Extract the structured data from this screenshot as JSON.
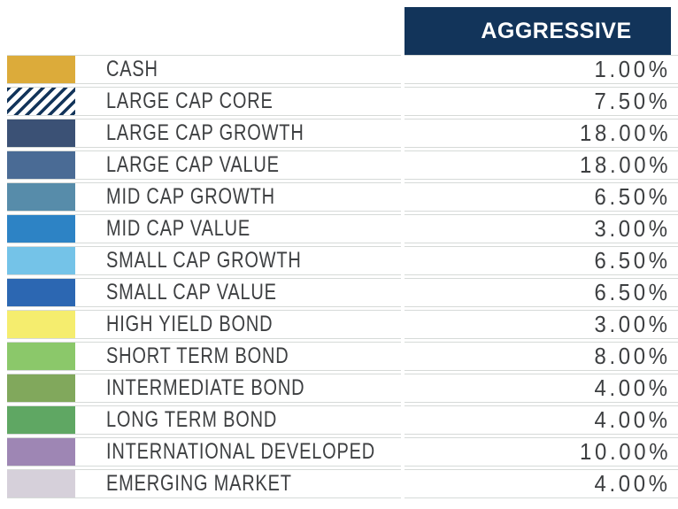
{
  "colors": {
    "header_bg": "#12345a",
    "header_text": "#ffffff",
    "row_bg": "#ffffff",
    "row_border": "#d6dad8",
    "label_text": "#3d3f41",
    "stripe_fg": "#12345a",
    "stripe_bg": "#ffffff"
  },
  "table": {
    "column_header": "AGGRESSIVE",
    "rows": [
      {
        "label": "CASH",
        "value": "1.00%",
        "swatch": "#dcab3a",
        "pattern": "solid"
      },
      {
        "label": "LARGE CAP CORE",
        "value": "7.50%",
        "swatch": "#12345a",
        "pattern": "diagonal-stripes"
      },
      {
        "label": "LARGE CAP GROWTH",
        "value": "18.00%",
        "swatch": "#3b5175",
        "pattern": "solid"
      },
      {
        "label": "LARGE CAP VALUE",
        "value": "18.00%",
        "swatch": "#4a6b95",
        "pattern": "solid"
      },
      {
        "label": "MID CAP GROWTH",
        "value": "6.50%",
        "swatch": "#578caa",
        "pattern": "solid"
      },
      {
        "label": "MID CAP VALUE",
        "value": "3.00%",
        "swatch": "#2d83c5",
        "pattern": "solid"
      },
      {
        "label": "SMALL CAP GROWTH",
        "value": "6.50%",
        "swatch": "#74c3e8",
        "pattern": "solid"
      },
      {
        "label": "SMALL CAP VALUE",
        "value": "6.50%",
        "swatch": "#2c67b2",
        "pattern": "solid"
      },
      {
        "label": "HIGH YIELD BOND",
        "value": "3.00%",
        "swatch": "#f5ed6e",
        "pattern": "solid"
      },
      {
        "label": "SHORT TERM BOND",
        "value": "8.00%",
        "swatch": "#8bc86a",
        "pattern": "solid"
      },
      {
        "label": "INTERMEDIATE BOND",
        "value": "4.00%",
        "swatch": "#81a85c",
        "pattern": "solid"
      },
      {
        "label": "LONG TERM BOND",
        "value": "4.00%",
        "swatch": "#5fa763",
        "pattern": "solid"
      },
      {
        "label": "INTERNATIONAL DEVELOPED",
        "value": "10.00%",
        "swatch": "#9e86b4",
        "pattern": "solid"
      },
      {
        "label": "EMERGING MARKET",
        "value": "4.00%",
        "swatch": "#d6d0da",
        "pattern": "solid"
      }
    ]
  },
  "chart_data": {
    "type": "table",
    "columns": [
      "",
      "AGGRESSIVE"
    ],
    "categories": [
      "CASH",
      "LARGE CAP CORE",
      "LARGE CAP GROWTH",
      "LARGE CAP VALUE",
      "MID CAP GROWTH",
      "MID CAP VALUE",
      "SMALL CAP GROWTH",
      "SMALL CAP VALUE",
      "HIGH YIELD BOND",
      "SHORT TERM BOND",
      "INTERMEDIATE BOND",
      "LONG TERM BOND",
      "INTERNATIONAL DEVELOPED",
      "EMERGING MARKET"
    ],
    "series": [
      {
        "name": "AGGRESSIVE",
        "values": [
          1.0,
          7.5,
          18.0,
          18.0,
          6.5,
          3.0,
          6.5,
          6.5,
          3.0,
          8.0,
          4.0,
          4.0,
          10.0,
          4.0
        ]
      }
    ],
    "value_unit": "%",
    "legend_position": "none",
    "grid": false
  }
}
